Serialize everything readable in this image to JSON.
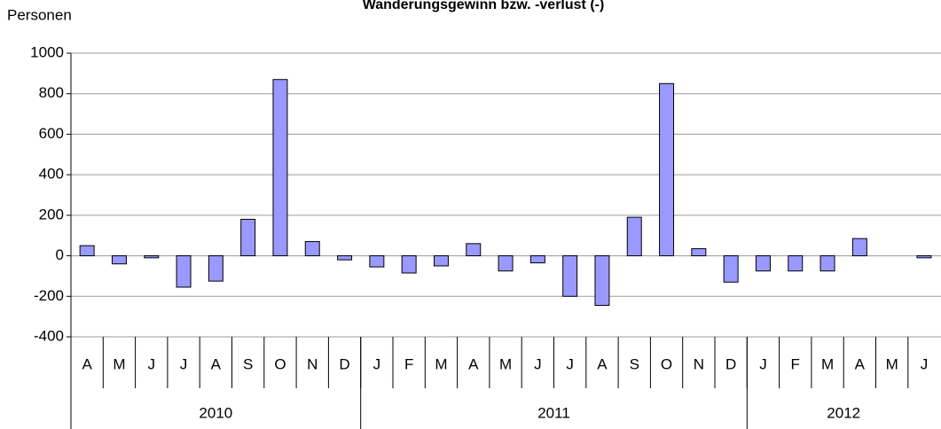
{
  "chart_data": {
    "type": "bar",
    "title": "Wanderungsgewinn bzw. -verlust (-)",
    "y_label": "Personen",
    "groups": [
      {
        "label": "2010",
        "categories": [
          "A",
          "M",
          "J",
          "J",
          "A",
          "S",
          "O",
          "N",
          "D"
        ]
      },
      {
        "label": "2011",
        "categories": [
          "J",
          "F",
          "M",
          "A",
          "M",
          "J",
          "J",
          "A",
          "S",
          "O",
          "N",
          "D"
        ]
      },
      {
        "label": "2012",
        "categories": [
          "J",
          "F",
          "M",
          "A",
          "M",
          "J"
        ]
      }
    ],
    "values": [
      50,
      -40,
      -10,
      -155,
      -125,
      180,
      870,
      70,
      -20,
      -55,
      -85,
      -50,
      60,
      -75,
      -35,
      -200,
      -245,
      190,
      850,
      35,
      -130,
      -75,
      -75,
      -75,
      85,
      null,
      -10
    ],
    "color": "#9999ff",
    "ylim": [
      -400,
      1000
    ],
    "yticks": [
      -400,
      -200,
      0,
      200,
      400,
      600,
      800,
      1000
    ],
    "grid": true
  }
}
